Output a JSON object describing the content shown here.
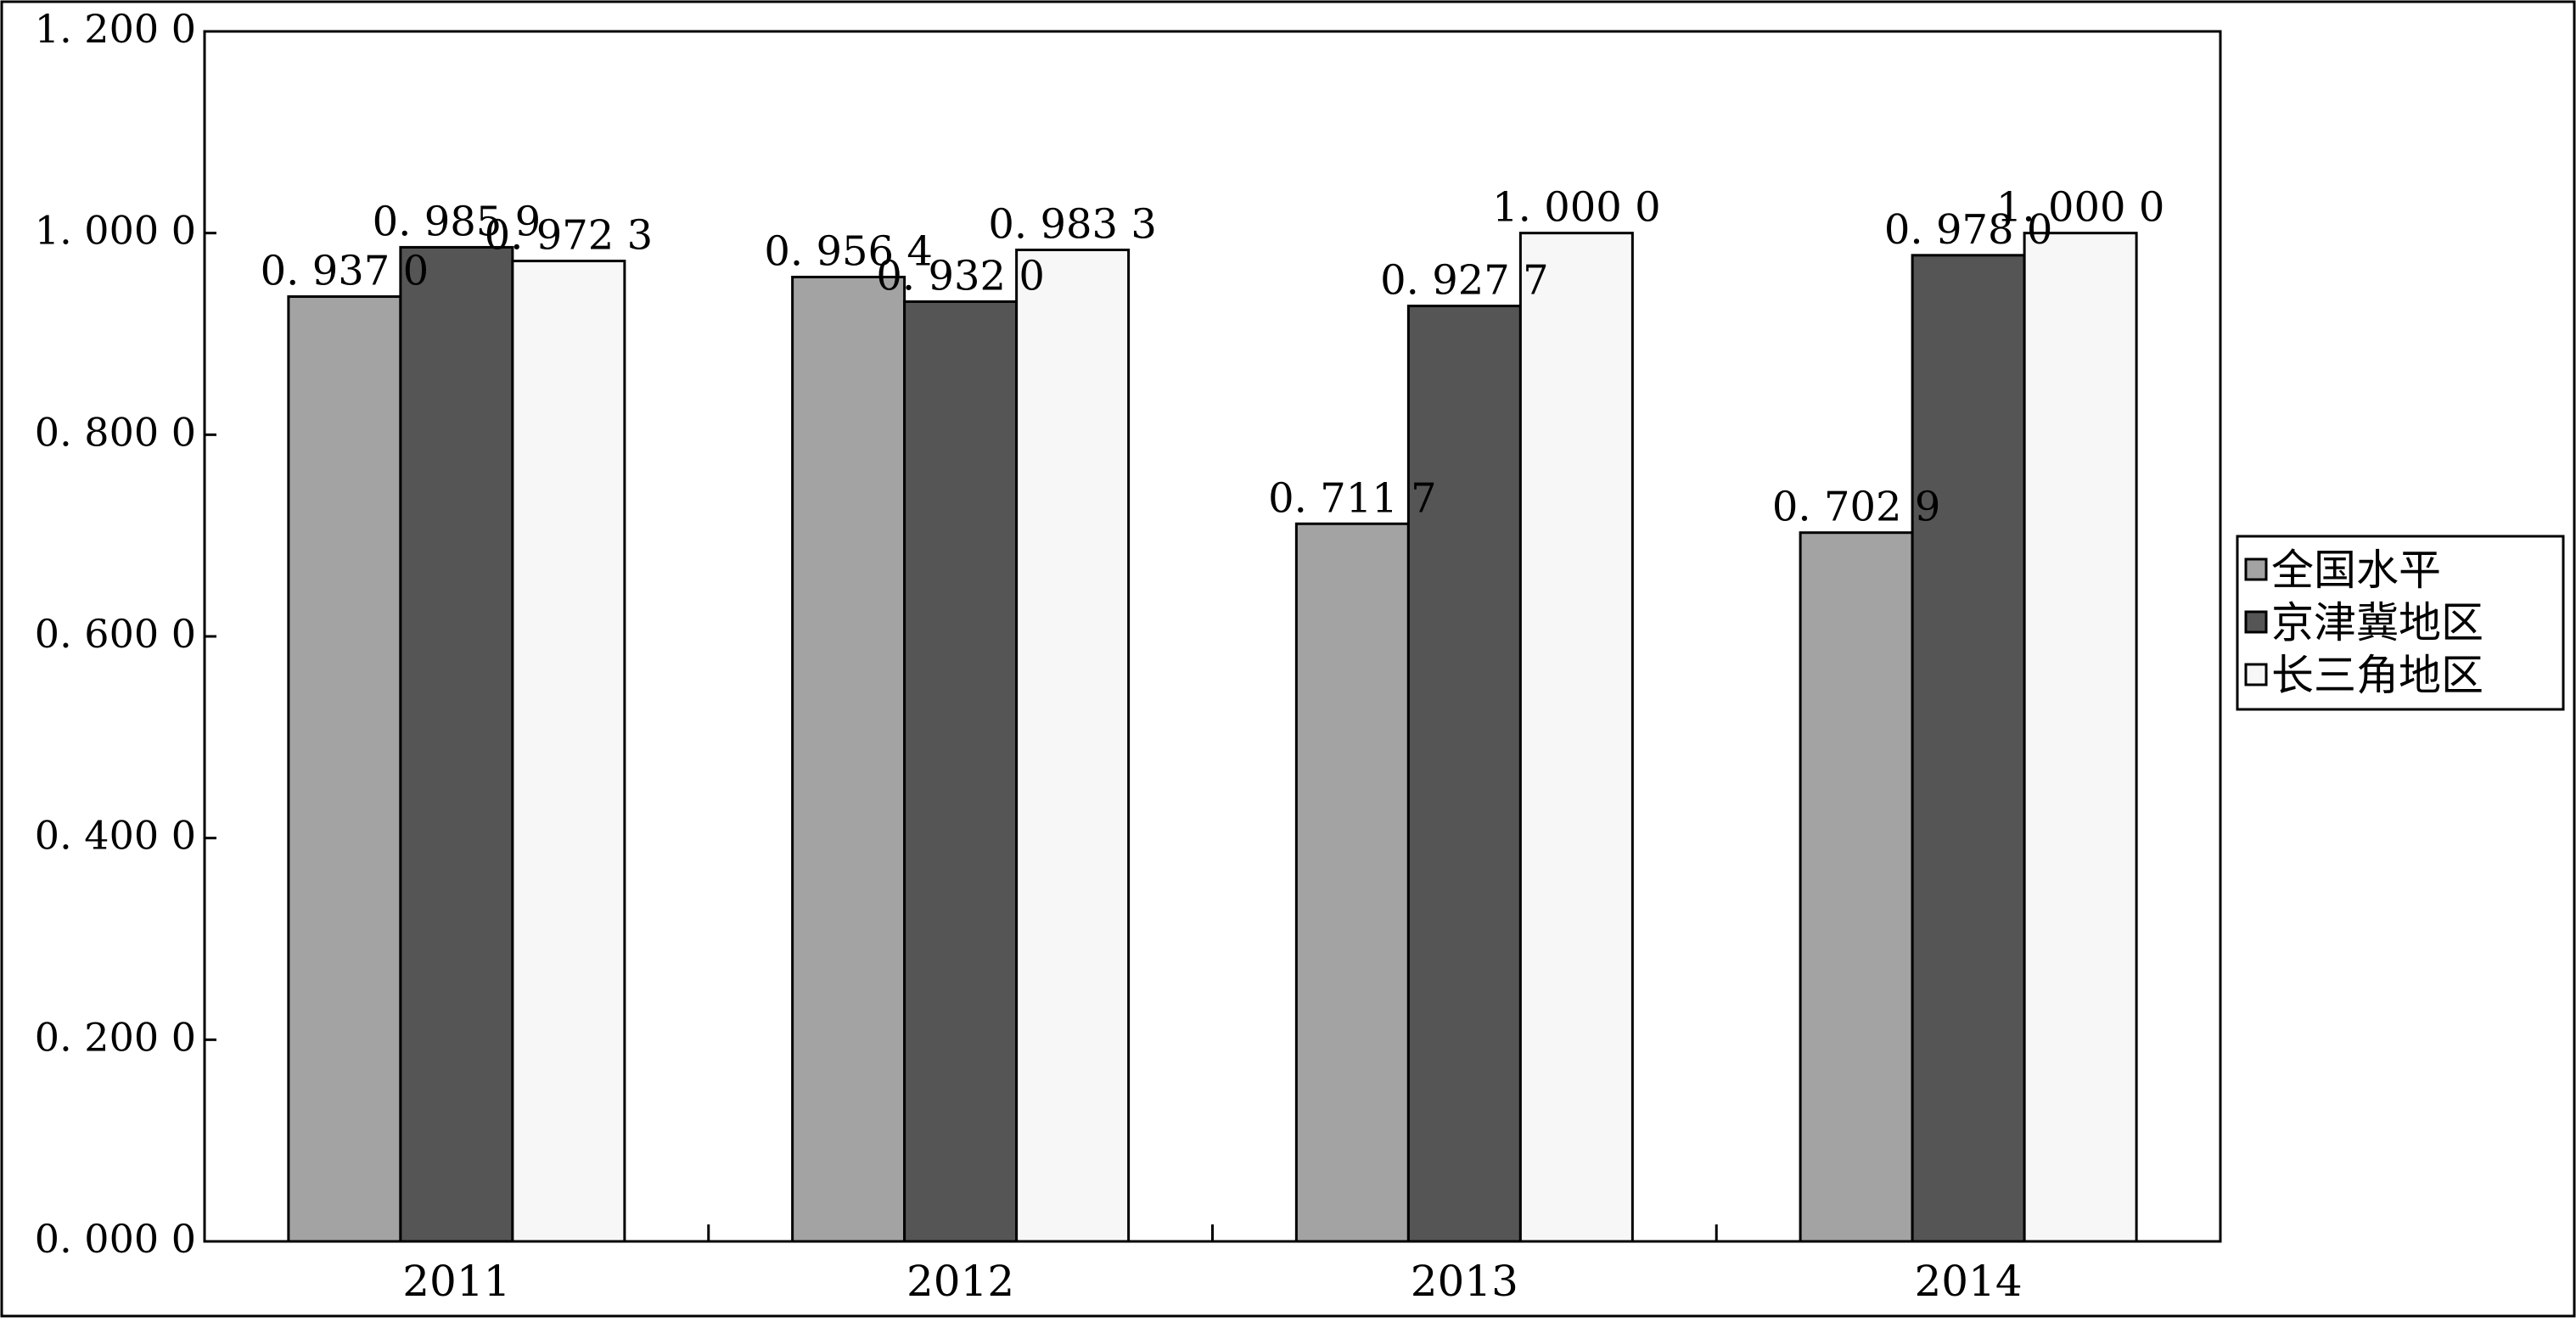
{
  "chart_data": {
    "type": "bar",
    "categories": [
      "2011",
      "2012",
      "2013",
      "2014"
    ],
    "series": [
      {
        "name": "全国水平",
        "color": "#a3a3a3",
        "values": [
          0.937,
          0.9564,
          0.7117,
          0.7029
        ],
        "labels": [
          "0. 937 0",
          "0. 956 4",
          "0. 711 7",
          "0. 702 9"
        ]
      },
      {
        "name": "京津冀地区",
        "color": "#555555",
        "values": [
          0.9859,
          0.932,
          0.9277,
          0.978
        ],
        "labels": [
          "0. 985 9",
          "0. 932 0",
          "0. 927 7",
          "0. 978 0"
        ]
      },
      {
        "name": "长三角地区",
        "color": "#f7f7f7",
        "values": [
          0.9723,
          0.9833,
          1.0,
          1.0
        ],
        "labels": [
          "0. 972 3",
          "0. 983 3",
          "1. 000 0",
          "1. 000 0"
        ]
      }
    ],
    "ylim": [
      0,
      1.2
    ],
    "yticks": [
      0,
      0.2,
      0.4,
      0.6,
      0.8,
      1.0,
      1.2
    ],
    "ytick_labels": [
      "0. 000 0",
      "0. 200 0",
      "0. 400 0",
      "0. 600 0",
      "0. 800 0",
      "1. 000 0",
      "1. 200 0"
    ],
    "grid": false,
    "legend_position": "right"
  }
}
